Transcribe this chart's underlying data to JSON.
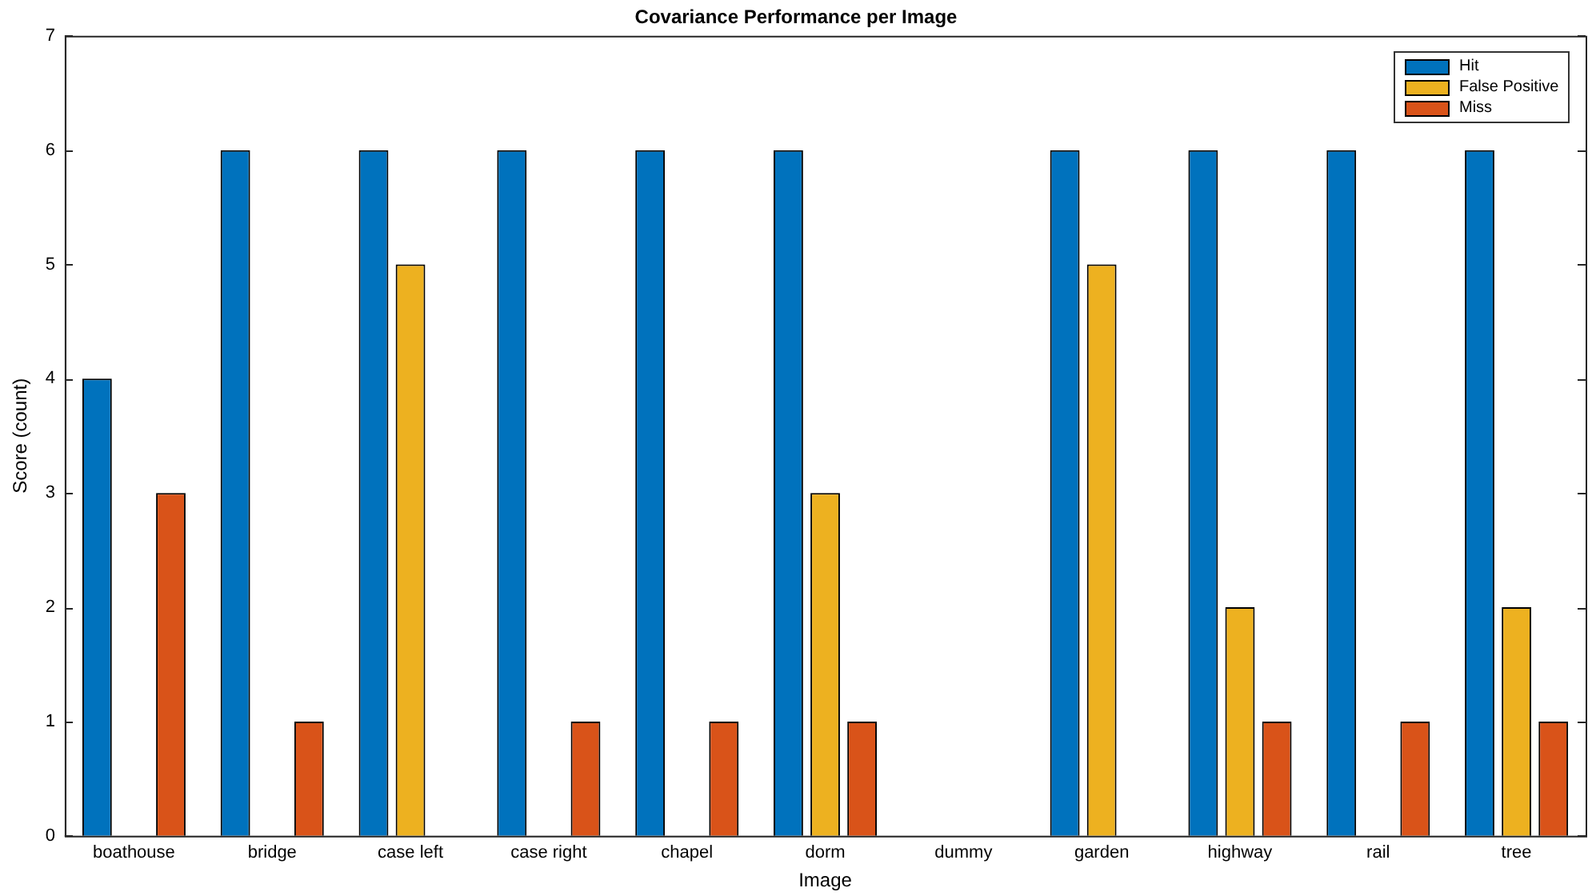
{
  "chart_data": {
    "type": "bar",
    "title": "Covariance Performance per Image",
    "xlabel": "Image",
    "ylabel": "Score (count)",
    "categories": [
      "boathouse",
      "bridge",
      "case left",
      "case right",
      "chapel",
      "dorm",
      "dummy",
      "garden",
      "highway",
      "rail",
      "tree"
    ],
    "series": [
      {
        "name": "Hit",
        "color": "#0072bd",
        "values": [
          4,
          6,
          6,
          6,
          6,
          6,
          0,
          6,
          6,
          6,
          6
        ]
      },
      {
        "name": "False Positive",
        "color": "#edb120",
        "values": [
          0,
          0,
          5,
          0,
          0,
          3,
          0,
          5,
          2,
          0,
          2
        ]
      },
      {
        "name": "Miss",
        "color": "#d95319",
        "values": [
          3,
          1,
          0,
          1,
          1,
          1,
          0,
          0,
          1,
          1,
          1
        ]
      }
    ],
    "ylim": [
      0,
      7
    ],
    "yticks": [
      0,
      1,
      2,
      3,
      4,
      5,
      6,
      7
    ],
    "grid": false,
    "legend": "top right"
  }
}
